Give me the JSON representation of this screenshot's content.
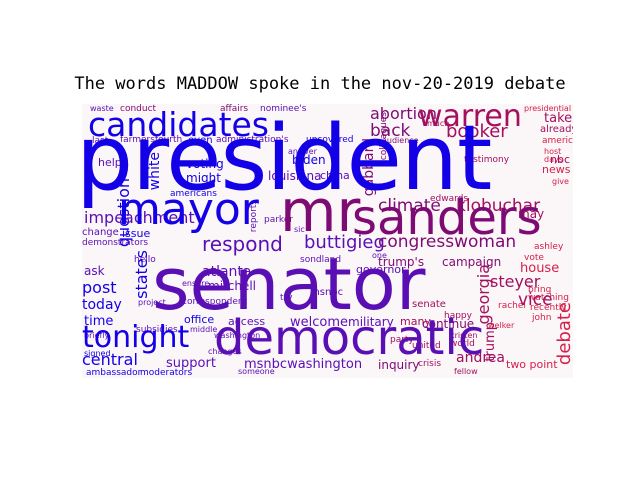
{
  "title": "The words MADDOW spoke in the nov-20-2019 debate",
  "colors": {
    "blue": "#1400e6",
    "violet": "#5a0fb5",
    "purple": "#7e0b74",
    "magenta": "#a2105e",
    "red": "#d6204a",
    "pink": "#e0557a"
  },
  "words": {
    "president": "president",
    "senator": "senator",
    "democratic": "democratic",
    "mr": "mr",
    "sanders": "sanders",
    "warren": "warren",
    "candidates": "candidates",
    "mayor": "mayor",
    "tonight": "tonight",
    "respond": "respond",
    "abortion": "abortion",
    "back": "back",
    "booker": "booker",
    "klobuchar": "klobuchar",
    "climate": "climate",
    "congresswoman": "congresswoman",
    "buttigieg": "buttigieg",
    "impeachment": "impeachment",
    "steyer": "steyer",
    "vice": "vice",
    "debate": "debate",
    "post": "post",
    "today": "today",
    "time": "time",
    "central": "central",
    "support": "support",
    "msnbcwashington": "msnbcwashington",
    "andrea": "andrea",
    "two_point": "two point",
    "inquiry": "inquiry",
    "question": "question",
    "states": "states",
    "atlanta": "atlanta",
    "mitchell": "mitchell",
    "welcome": "welcome",
    "military": "military",
    "continue": "continue",
    "campaign": "campaign",
    "trumps": "trump's",
    "georgia": "georgia",
    "house": "house",
    "take": "take",
    "biden": "biden",
    "gabbard": "gabbard",
    "white": "white",
    "might": "might",
    "louisiana": "louisiana",
    "china": "china",
    "voting": "voting",
    "help": "help",
    "access": "access",
    "office": "office",
    "many": "many",
    "may": "may",
    "nbc": "nbc",
    "already": "already",
    "american": "american",
    "news": "news",
    "uncovered": "uncovered",
    "affairs": "affairs",
    "nominees": "nominee's",
    "conduct": "conduct",
    "waste": "waste",
    "farmersfourth": "farmersfourth",
    "even": "even",
    "administrations": "administration's",
    "ambassador": "ambassador",
    "moderators": "moderators",
    "issue": "issue",
    "change": "change",
    "ask": "ask",
    "demonstrators": "demonstrators",
    "hello": "hello",
    "project": "project",
    "correspondent": "correspondent",
    "subsidies": "subsidies",
    "middle": "middle",
    "changes": "changes",
    "someone": "someone",
    "testimony": "testimony",
    "edwards": "edwards",
    "ashley": "ashley",
    "watching": "watching",
    "recently": "recently",
    "john": "john",
    "kristen": "kristen",
    "world": "world",
    "united": "united",
    "crisis": "crisis",
    "senate": "senate",
    "happy": "happy",
    "rachel": "rachel",
    "vote": "vote",
    "host": "host",
    "days": "days",
    "give": "give",
    "americans": "americans",
    "answer": "answer",
    "sondland": "sondland",
    "governor": "governor",
    "msnbc": "msnbc",
    "parker": "parker",
    "reports": "reports",
    "colleagues": "colleagues",
    "audience": "audience",
    "much": "much",
    "presidential": "presidential",
    "bring": "bring",
    "party": "party",
    "fellow": "fellow",
    "welker": "welker",
    "washington": "washington",
    "briefly": "briefly",
    "signed": "signed",
    "last": "last",
    "sic": "sic",
    "try": "try",
    "ensure": "ensure",
    "one": "one",
    "trump": "trump"
  }
}
